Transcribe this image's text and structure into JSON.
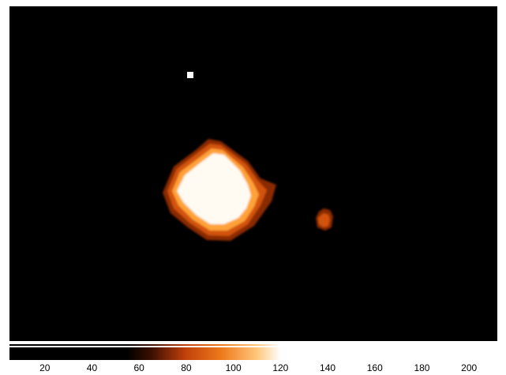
{
  "image": {
    "description_colormap": "heat",
    "colors": {
      "background": "#000000",
      "core": "#fffaf2",
      "halo_inner": "#ffa238",
      "halo_outer": "#d2520f",
      "rim": "#8a2a05"
    }
  },
  "colorbar": {
    "colormap": "heat",
    "stops": [
      {
        "value": 0,
        "color": "#000000"
      },
      {
        "value": 55,
        "color": "#000000"
      },
      {
        "value": 65,
        "color": "#3a0f00"
      },
      {
        "value": 80,
        "color": "#c3420c"
      },
      {
        "value": 95,
        "color": "#ee7a1c"
      },
      {
        "value": 110,
        "color": "#ffc77c"
      },
      {
        "value": 120,
        "color": "#ffffff"
      },
      {
        "value": 210,
        "color": "#ffffff"
      }
    ],
    "range": [
      5,
      212
    ],
    "ticks": [
      "20",
      "40",
      "60",
      "80",
      "100",
      "120",
      "140",
      "160",
      "180",
      "200"
    ],
    "tick_values": [
      20,
      40,
      60,
      80,
      100,
      120,
      140,
      160,
      180,
      200
    ]
  }
}
